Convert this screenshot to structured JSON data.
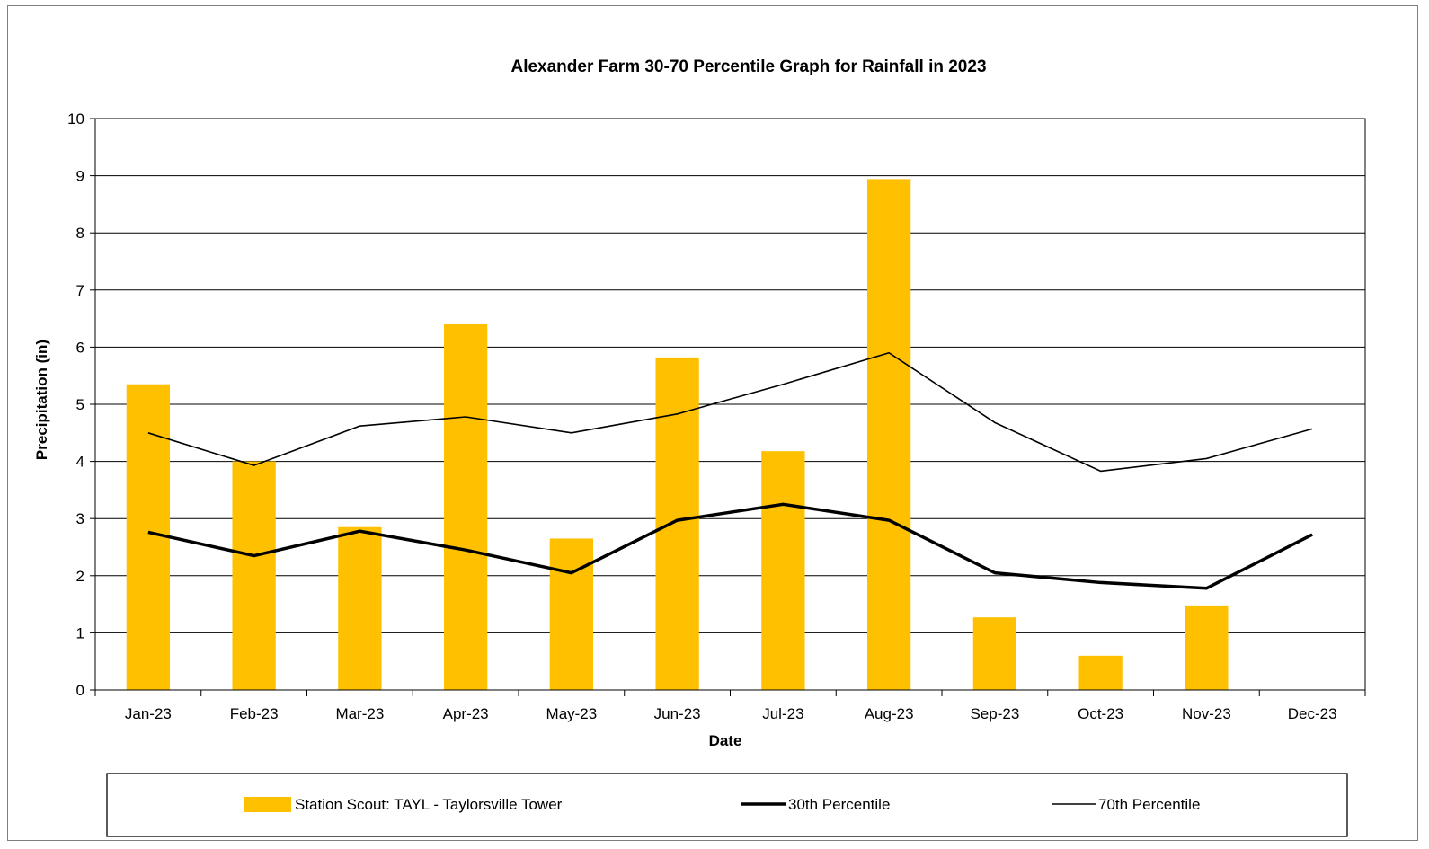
{
  "chart_data": {
    "type": "bar",
    "title": "Alexander Farm 30-70 Percentile Graph for Rainfall in 2023",
    "xlabel": "Date",
    "ylabel": "Precipitation (in)",
    "ylim": [
      0,
      10
    ],
    "yticks": [
      "0",
      "1",
      "2",
      "3",
      "4",
      "5",
      "6",
      "7",
      "8",
      "9",
      "10"
    ],
    "grid": true,
    "legend_position": "bottom",
    "categories": [
      "Jan-23",
      "Feb-23",
      "Mar-23",
      "Apr-23",
      "May-23",
      "Jun-23",
      "Jul-23",
      "Aug-23",
      "Sep-23",
      "Oct-23",
      "Nov-23",
      "Dec-23"
    ],
    "series": [
      {
        "name": "Station Scout: TAYL - Taylorsville Tower",
        "type": "bar",
        "color": "#FFC000",
        "values": [
          5.35,
          4.0,
          2.85,
          6.4,
          2.65,
          5.82,
          4.18,
          8.94,
          1.27,
          0.6,
          1.48,
          null
        ]
      },
      {
        "name": "30th Percentile",
        "type": "line",
        "color": "#000000",
        "line": "thick",
        "values": [
          2.76,
          2.35,
          2.78,
          2.45,
          2.05,
          2.97,
          3.25,
          2.97,
          2.05,
          1.88,
          1.78,
          2.72
        ]
      },
      {
        "name": "70th Percentile",
        "type": "line",
        "color": "#000000",
        "line": "thin",
        "values": [
          4.5,
          3.93,
          4.62,
          4.78,
          4.5,
          4.83,
          5.35,
          5.9,
          4.68,
          3.83,
          4.05,
          4.57
        ]
      }
    ]
  }
}
